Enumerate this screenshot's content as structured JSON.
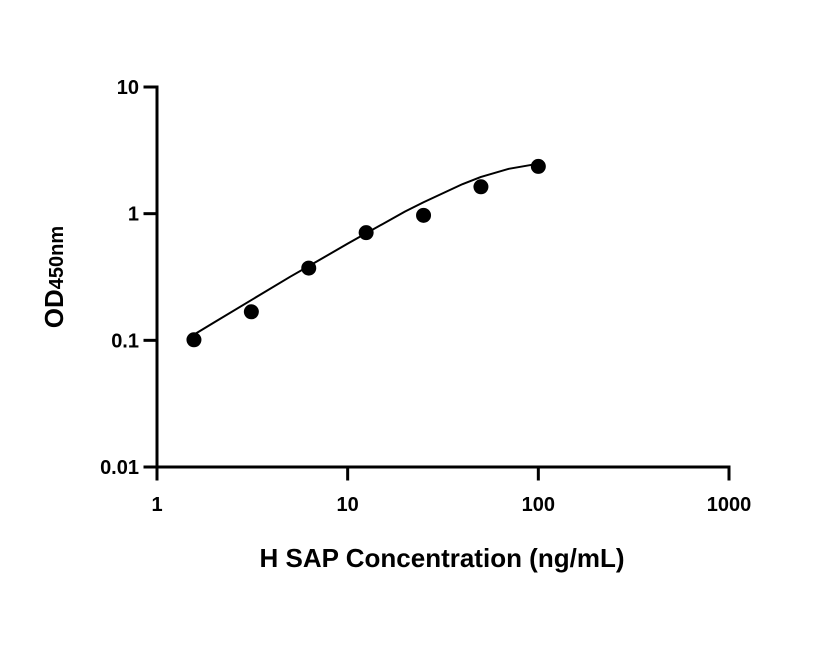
{
  "chart_data": {
    "type": "scatter",
    "title": "",
    "xlabel": "H SAP Concentration (ng/mL)",
    "ylabel_main": "OD",
    "ylabel_sub": "450nm",
    "x_scale": "log",
    "y_scale": "log",
    "xlim": [
      1,
      1000
    ],
    "ylim": [
      0.01,
      10
    ],
    "x_ticks": [
      {
        "value": 1,
        "label": "1"
      },
      {
        "value": 10,
        "label": "10"
      },
      {
        "value": 100,
        "label": "100"
      },
      {
        "value": 1000,
        "label": "1000"
      }
    ],
    "y_ticks": [
      {
        "value": 0.01,
        "label": "0.01"
      },
      {
        "value": 0.1,
        "label": "0.1"
      },
      {
        "value": 1,
        "label": "1"
      },
      {
        "value": 10,
        "label": "10"
      }
    ],
    "grid": false,
    "legend": "none",
    "series": [
      {
        "x": [
          1.5625,
          3.125,
          6.25,
          12.5,
          25,
          50,
          100
        ],
        "y": [
          0.101,
          0.168,
          0.372,
          0.708,
          0.97,
          1.63,
          2.36
        ],
        "marker": "circle",
        "color": "#000000"
      }
    ],
    "fit_curve": {
      "type": "4PL",
      "x": [
        1.5625,
        2,
        3.125,
        5,
        6.25,
        10,
        12.5,
        20,
        25,
        40,
        50,
        70,
        100
      ],
      "y": [
        0.111,
        0.139,
        0.208,
        0.318,
        0.385,
        0.58,
        0.7,
        1.04,
        1.23,
        1.71,
        1.95,
        2.26,
        2.48
      ],
      "color": "#000000"
    }
  }
}
